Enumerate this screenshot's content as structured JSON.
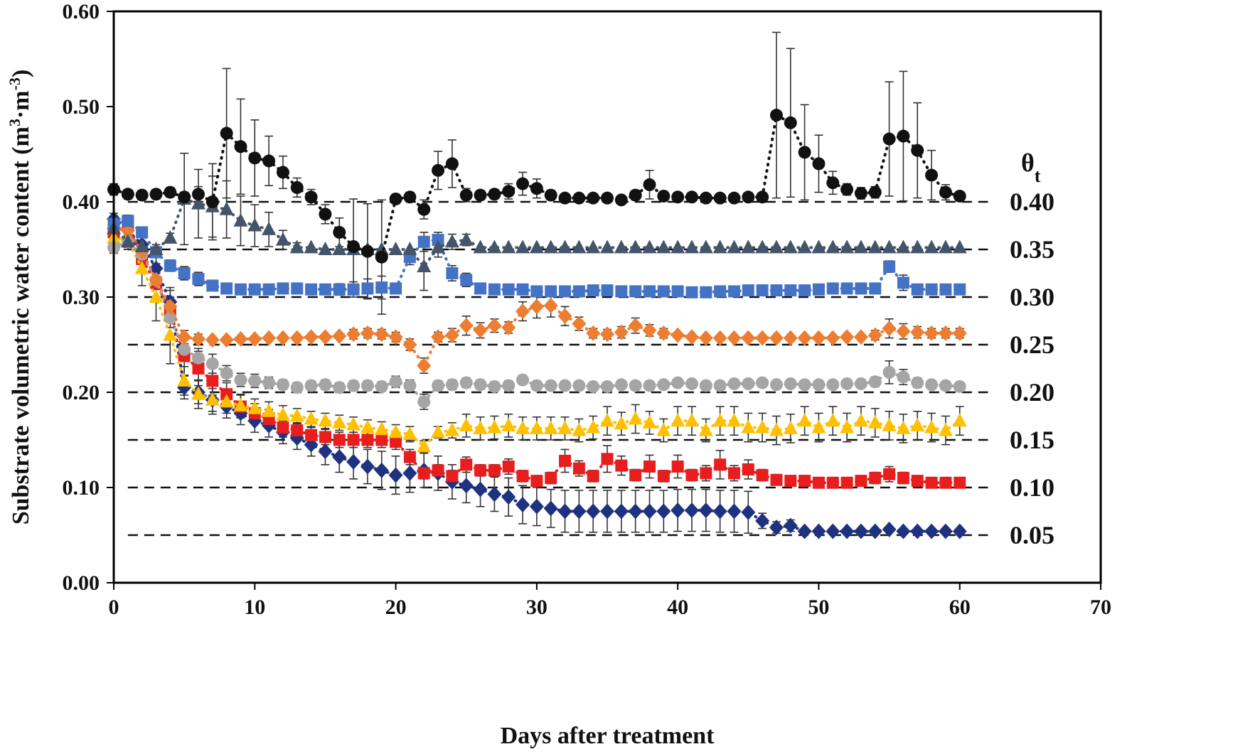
{
  "chart_data": {
    "type": "scatter",
    "xlabel": "Days after treatment",
    "ylabel_main": "Substrate volumetric water content (m",
    "ylabel_sup1": "3",
    "ylabel_mid": "·m",
    "ylabel_sup2": "-3",
    "ylabel_end": ")",
    "xlim": [
      0,
      70
    ],
    "ylim": [
      0,
      0.6
    ],
    "xticks": [
      0,
      10,
      20,
      30,
      40,
      50,
      60,
      70
    ],
    "yticks": [
      0,
      0.1,
      0.2,
      0.3,
      0.4,
      0.5,
      0.6
    ],
    "xtick_labels": [
      "0",
      "10",
      "20",
      "30",
      "40",
      "50",
      "60",
      "70"
    ],
    "ytick_labels": [
      "0.00",
      "0.10",
      "0.20",
      "0.30",
      "0.40",
      "0.50",
      "0.60"
    ],
    "legend_title": "θt",
    "legend_title_main": "θ",
    "legend_title_sub": "t",
    "thresholds": [
      {
        "value": 0.4,
        "label": "0.40"
      },
      {
        "value": 0.35,
        "label": "0.35"
      },
      {
        "value": 0.3,
        "label": "0.30"
      },
      {
        "value": 0.25,
        "label": "0.25"
      },
      {
        "value": 0.2,
        "label": "0.20"
      },
      {
        "value": 0.15,
        "label": "0.15"
      },
      {
        "value": 0.1,
        "label": "0.10"
      },
      {
        "value": 0.05,
        "label": "0.05"
      }
    ],
    "x": [
      0,
      1,
      2,
      3,
      4,
      5,
      6,
      7,
      8,
      9,
      10,
      11,
      12,
      13,
      14,
      15,
      16,
      17,
      18,
      19,
      20,
      21,
      22,
      23,
      24,
      25,
      26,
      27,
      28,
      29,
      30,
      31,
      32,
      33,
      34,
      35,
      36,
      37,
      38,
      39,
      40,
      41,
      42,
      43,
      44,
      45,
      46,
      47,
      48,
      49,
      50,
      51,
      52,
      53,
      54,
      55,
      56,
      57,
      58,
      59,
      60
    ],
    "series": [
      {
        "name": "0.40",
        "color": "#111111",
        "marker": "circle",
        "values": [
          0.413,
          0.408,
          0.407,
          0.408,
          0.41,
          0.405,
          0.408,
          0.4,
          0.472,
          0.458,
          0.446,
          0.443,
          0.431,
          0.415,
          0.405,
          0.387,
          0.368,
          0.353,
          0.348,
          0.342,
          0.403,
          0.405,
          0.392,
          0.433,
          0.44,
          0.407,
          0.407,
          0.408,
          0.411,
          0.419,
          0.414,
          0.407,
          0.404,
          0.404,
          0.404,
          0.404,
          0.402,
          0.407,
          0.418,
          0.406,
          0.405,
          0.405,
          0.404,
          0.404,
          0.404,
          0.405,
          0.405,
          0.491,
          0.483,
          0.452,
          0.44,
          0.42,
          0.413,
          0.409,
          0.41,
          0.466,
          0.469,
          0.454,
          0.428,
          0.41,
          0.406
        ],
        "errors": [
          0.006,
          0.005,
          0.005,
          0.005,
          0.005,
          0.005,
          0.008,
          0.04,
          0.068,
          0.05,
          0.04,
          0.026,
          0.017,
          0.01,
          0.008,
          0.01,
          0.015,
          0.05,
          0.05,
          0.06,
          0.005,
          0.005,
          0.01,
          0.02,
          0.025,
          0.007,
          0.005,
          0.005,
          0.008,
          0.012,
          0.01,
          0.005,
          0.004,
          0.004,
          0.004,
          0.004,
          0.004,
          0.005,
          0.015,
          0.005,
          0.004,
          0.004,
          0.004,
          0.004,
          0.004,
          0.004,
          0.004,
          0.087,
          0.078,
          0.05,
          0.03,
          0.012,
          0.006,
          0.006,
          0.006,
          0.06,
          0.068,
          0.05,
          0.026,
          0.008,
          0.004
        ]
      },
      {
        "name": "0.35",
        "color": "#44546A",
        "marker": "triangle",
        "values": [
          0.372,
          0.358,
          0.353,
          0.35,
          0.362,
          0.403,
          0.398,
          0.395,
          0.392,
          0.38,
          0.375,
          0.371,
          0.36,
          0.352,
          0.352,
          0.35,
          0.35,
          0.35,
          0.35,
          0.35,
          0.35,
          0.35,
          0.332,
          0.352,
          0.358,
          0.36,
          0.352,
          0.352,
          0.352,
          0.352,
          0.352,
          0.352,
          0.352,
          0.352,
          0.352,
          0.352,
          0.352,
          0.352,
          0.352,
          0.352,
          0.352,
          0.352,
          0.352,
          0.352,
          0.352,
          0.352,
          0.352,
          0.352,
          0.352,
          0.352,
          0.352,
          0.352,
          0.352,
          0.352,
          0.352,
          0.352,
          0.352,
          0.352,
          0.352,
          0.352,
          0.352
        ],
        "errors": [
          0.008,
          0.006,
          0.005,
          0.005,
          0.005,
          0.048,
          0.036,
          0.032,
          0.03,
          0.026,
          0.022,
          0.018,
          0.01,
          0.005,
          0.004,
          0.004,
          0.004,
          0.004,
          0.004,
          0.004,
          0.004,
          0.004,
          0.025,
          0.01,
          0.008,
          0.006,
          0.004,
          0.004,
          0.004,
          0.004,
          0.004,
          0.004,
          0.004,
          0.004,
          0.004,
          0.004,
          0.004,
          0.004,
          0.004,
          0.004,
          0.004,
          0.004,
          0.004,
          0.004,
          0.004,
          0.004,
          0.004,
          0.004,
          0.004,
          0.004,
          0.004,
          0.004,
          0.004,
          0.004,
          0.004,
          0.004,
          0.004,
          0.004,
          0.004,
          0.004,
          0.004
        ]
      },
      {
        "name": "0.30",
        "color": "#4472C4",
        "marker": "square",
        "values": [
          0.377,
          0.38,
          0.368,
          0.347,
          0.333,
          0.325,
          0.319,
          0.312,
          0.309,
          0.308,
          0.308,
          0.308,
          0.309,
          0.309,
          0.308,
          0.308,
          0.308,
          0.308,
          0.309,
          0.31,
          0.309,
          0.342,
          0.358,
          0.36,
          0.325,
          0.318,
          0.309,
          0.308,
          0.308,
          0.308,
          0.306,
          0.306,
          0.306,
          0.306,
          0.307,
          0.307,
          0.306,
          0.306,
          0.306,
          0.306,
          0.306,
          0.305,
          0.305,
          0.306,
          0.306,
          0.307,
          0.307,
          0.307,
          0.307,
          0.307,
          0.308,
          0.309,
          0.309,
          0.309,
          0.309,
          0.332,
          0.315,
          0.308,
          0.308,
          0.308,
          0.308
        ],
        "errors": [
          0.008,
          0.006,
          0.005,
          0.005,
          0.006,
          0.007,
          0.007,
          0.005,
          0.004,
          0.004,
          0.004,
          0.004,
          0.004,
          0.004,
          0.004,
          0.005,
          0.006,
          0.008,
          0.01,
          0.012,
          0.005,
          0.008,
          0.01,
          0.008,
          0.008,
          0.007,
          0.004,
          0.004,
          0.004,
          0.004,
          0.004,
          0.004,
          0.004,
          0.004,
          0.004,
          0.004,
          0.004,
          0.004,
          0.004,
          0.004,
          0.004,
          0.004,
          0.004,
          0.004,
          0.004,
          0.004,
          0.004,
          0.004,
          0.004,
          0.004,
          0.004,
          0.004,
          0.004,
          0.004,
          0.004,
          0.006,
          0.008,
          0.004,
          0.004,
          0.004,
          0.004
        ]
      },
      {
        "name": "0.25",
        "color": "#ED7D31",
        "marker": "diamond",
        "values": [
          0.372,
          0.37,
          0.348,
          0.318,
          0.29,
          0.258,
          0.256,
          0.255,
          0.255,
          0.256,
          0.256,
          0.257,
          0.257,
          0.257,
          0.258,
          0.258,
          0.259,
          0.261,
          0.262,
          0.261,
          0.258,
          0.25,
          0.228,
          0.258,
          0.26,
          0.27,
          0.265,
          0.27,
          0.268,
          0.285,
          0.29,
          0.291,
          0.28,
          0.272,
          0.262,
          0.261,
          0.263,
          0.27,
          0.265,
          0.262,
          0.26,
          0.258,
          0.257,
          0.257,
          0.257,
          0.257,
          0.257,
          0.257,
          0.257,
          0.257,
          0.257,
          0.257,
          0.258,
          0.258,
          0.26,
          0.267,
          0.264,
          0.263,
          0.262,
          0.262,
          0.262
        ],
        "errors": [
          0.006,
          0.006,
          0.006,
          0.008,
          0.01,
          0.007,
          0.005,
          0.004,
          0.004,
          0.004,
          0.004,
          0.004,
          0.004,
          0.004,
          0.004,
          0.004,
          0.004,
          0.005,
          0.005,
          0.005,
          0.005,
          0.006,
          0.008,
          0.005,
          0.007,
          0.01,
          0.008,
          0.007,
          0.006,
          0.01,
          0.012,
          0.012,
          0.01,
          0.007,
          0.005,
          0.005,
          0.006,
          0.008,
          0.006,
          0.005,
          0.004,
          0.004,
          0.004,
          0.004,
          0.004,
          0.004,
          0.004,
          0.004,
          0.004,
          0.004,
          0.004,
          0.004,
          0.004,
          0.004,
          0.005,
          0.01,
          0.008,
          0.006,
          0.005,
          0.005,
          0.005
        ]
      },
      {
        "name": "0.20",
        "color": "#A5A5A5",
        "marker": "circle",
        "values": [
          0.352,
          0.358,
          0.345,
          0.318,
          0.278,
          0.245,
          0.236,
          0.23,
          0.22,
          0.213,
          0.212,
          0.21,
          0.208,
          0.205,
          0.207,
          0.208,
          0.205,
          0.207,
          0.207,
          0.206,
          0.211,
          0.207,
          0.19,
          0.207,
          0.208,
          0.21,
          0.208,
          0.206,
          0.207,
          0.213,
          0.207,
          0.207,
          0.207,
          0.207,
          0.206,
          0.206,
          0.208,
          0.207,
          0.207,
          0.208,
          0.21,
          0.209,
          0.207,
          0.207,
          0.209,
          0.209,
          0.21,
          0.208,
          0.209,
          0.208,
          0.208,
          0.208,
          0.209,
          0.209,
          0.211,
          0.221,
          0.216,
          0.21,
          0.208,
          0.207,
          0.206
        ],
        "errors": [
          0.006,
          0.008,
          0.01,
          0.01,
          0.01,
          0.01,
          0.01,
          0.01,
          0.008,
          0.007,
          0.007,
          0.006,
          0.005,
          0.005,
          0.005,
          0.005,
          0.005,
          0.005,
          0.005,
          0.005,
          0.006,
          0.006,
          0.008,
          0.005,
          0.005,
          0.005,
          0.005,
          0.005,
          0.005,
          0.004,
          0.004,
          0.004,
          0.004,
          0.004,
          0.004,
          0.004,
          0.004,
          0.004,
          0.004,
          0.004,
          0.004,
          0.004,
          0.004,
          0.004,
          0.004,
          0.004,
          0.004,
          0.004,
          0.004,
          0.004,
          0.004,
          0.004,
          0.004,
          0.004,
          0.005,
          0.012,
          0.008,
          0.005,
          0.004,
          0.004,
          0.004
        ]
      },
      {
        "name": "0.15",
        "color": "#FFC000",
        "marker": "triangle",
        "values": [
          0.362,
          0.36,
          0.33,
          0.3,
          0.26,
          0.212,
          0.198,
          0.192,
          0.19,
          0.186,
          0.183,
          0.18,
          0.176,
          0.175,
          0.172,
          0.17,
          0.168,
          0.166,
          0.163,
          0.161,
          0.158,
          0.156,
          0.143,
          0.158,
          0.16,
          0.165,
          0.162,
          0.163,
          0.165,
          0.162,
          0.162,
          0.162,
          0.162,
          0.16,
          0.163,
          0.17,
          0.167,
          0.172,
          0.168,
          0.16,
          0.17,
          0.17,
          0.16,
          0.17,
          0.17,
          0.163,
          0.163,
          0.16,
          0.162,
          0.17,
          0.163,
          0.17,
          0.163,
          0.17,
          0.168,
          0.165,
          0.162,
          0.165,
          0.163,
          0.16,
          0.17
        ],
        "errors": [
          0.008,
          0.01,
          0.018,
          0.025,
          0.03,
          0.015,
          0.015,
          0.015,
          0.012,
          0.012,
          0.01,
          0.01,
          0.01,
          0.008,
          0.008,
          0.008,
          0.008,
          0.008,
          0.008,
          0.008,
          0.008,
          0.008,
          0.006,
          0.006,
          0.008,
          0.012,
          0.012,
          0.012,
          0.012,
          0.012,
          0.012,
          0.012,
          0.012,
          0.012,
          0.012,
          0.015,
          0.012,
          0.015,
          0.012,
          0.012,
          0.015,
          0.015,
          0.012,
          0.015,
          0.015,
          0.015,
          0.015,
          0.015,
          0.015,
          0.015,
          0.015,
          0.015,
          0.015,
          0.015,
          0.015,
          0.015,
          0.015,
          0.015,
          0.015,
          0.015,
          0.015
        ]
      },
      {
        "name": "0.10",
        "color": "#E81E1E",
        "marker": "square",
        "values": [
          0.368,
          0.378,
          0.34,
          0.315,
          0.285,
          0.238,
          0.225,
          0.212,
          0.198,
          0.185,
          0.178,
          0.172,
          0.163,
          0.16,
          0.155,
          0.153,
          0.15,
          0.15,
          0.15,
          0.15,
          0.148,
          0.132,
          0.115,
          0.118,
          0.112,
          0.124,
          0.118,
          0.118,
          0.122,
          0.112,
          0.107,
          0.11,
          0.128,
          0.12,
          0.112,
          0.13,
          0.123,
          0.113,
          0.122,
          0.112,
          0.122,
          0.113,
          0.115,
          0.124,
          0.115,
          0.119,
          0.113,
          0.108,
          0.107,
          0.107,
          0.105,
          0.105,
          0.105,
          0.107,
          0.11,
          0.114,
          0.11,
          0.107,
          0.105,
          0.105,
          0.105
        ],
        "errors": [
          0.008,
          0.008,
          0.015,
          0.02,
          0.025,
          0.02,
          0.018,
          0.015,
          0.012,
          0.012,
          0.01,
          0.01,
          0.01,
          0.008,
          0.008,
          0.008,
          0.008,
          0.008,
          0.008,
          0.008,
          0.008,
          0.008,
          0.006,
          0.006,
          0.006,
          0.008,
          0.006,
          0.006,
          0.008,
          0.006,
          0.004,
          0.006,
          0.012,
          0.008,
          0.006,
          0.014,
          0.01,
          0.006,
          0.012,
          0.006,
          0.012,
          0.006,
          0.008,
          0.015,
          0.008,
          0.01,
          0.006,
          0.004,
          0.004,
          0.004,
          0.004,
          0.004,
          0.004,
          0.004,
          0.006,
          0.008,
          0.006,
          0.004,
          0.004,
          0.004,
          0.004
        ]
      },
      {
        "name": "0.05",
        "color": "#1F3280",
        "marker": "diamond",
        "values": [
          0.382,
          0.37,
          0.355,
          0.33,
          0.295,
          0.205,
          0.2,
          0.192,
          0.185,
          0.178,
          0.17,
          0.165,
          0.158,
          0.152,
          0.145,
          0.138,
          0.132,
          0.127,
          0.122,
          0.118,
          0.113,
          0.115,
          0.118,
          0.115,
          0.106,
          0.102,
          0.098,
          0.093,
          0.09,
          0.082,
          0.08,
          0.078,
          0.075,
          0.075,
          0.075,
          0.075,
          0.075,
          0.075,
          0.075,
          0.075,
          0.076,
          0.076,
          0.076,
          0.075,
          0.075,
          0.074,
          0.065,
          0.058,
          0.06,
          0.054,
          0.054,
          0.054,
          0.054,
          0.054,
          0.054,
          0.056,
          0.054,
          0.054,
          0.054,
          0.054,
          0.054
        ],
        "errors": [
          0.006,
          0.008,
          0.01,
          0.012,
          0.012,
          0.012,
          0.012,
          0.012,
          0.012,
          0.012,
          0.012,
          0.012,
          0.012,
          0.012,
          0.012,
          0.014,
          0.016,
          0.018,
          0.018,
          0.02,
          0.02,
          0.02,
          0.018,
          0.018,
          0.018,
          0.018,
          0.018,
          0.018,
          0.02,
          0.02,
          0.02,
          0.02,
          0.022,
          0.022,
          0.022,
          0.022,
          0.022,
          0.022,
          0.022,
          0.022,
          0.022,
          0.022,
          0.022,
          0.022,
          0.022,
          0.022,
          0.008,
          0.006,
          0.006,
          0.003,
          0.003,
          0.003,
          0.003,
          0.003,
          0.003,
          0.003,
          0.003,
          0.003,
          0.003,
          0.003,
          0.003
        ]
      }
    ]
  }
}
